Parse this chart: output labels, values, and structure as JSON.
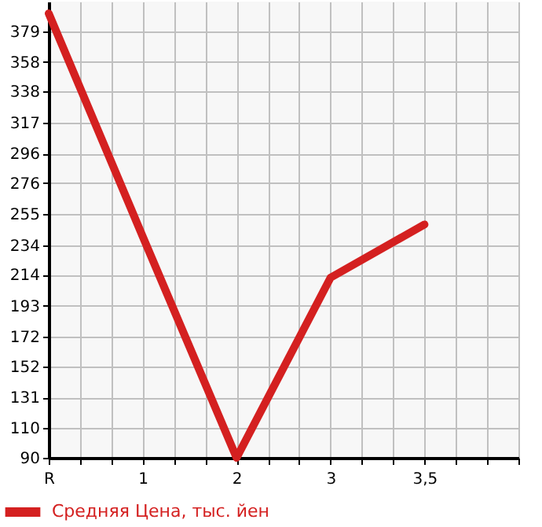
{
  "chart_data": {
    "type": "line",
    "categories": [
      "R",
      "1",
      "2",
      "3",
      "3,5"
    ],
    "series": [
      {
        "name": "Средняя Цена, тыс. йен",
        "color": "#d42020",
        "values": [
          391,
          240,
          90,
          212,
          248
        ]
      }
    ],
    "ylim": [
      90,
      399
    ],
    "yticks": [
      90,
      110,
      131,
      152,
      172,
      193,
      214,
      234,
      255,
      276,
      296,
      317,
      338,
      358,
      379
    ],
    "grid": true,
    "legend": "bottom left",
    "marker": "none",
    "line_style": "solid"
  }
}
